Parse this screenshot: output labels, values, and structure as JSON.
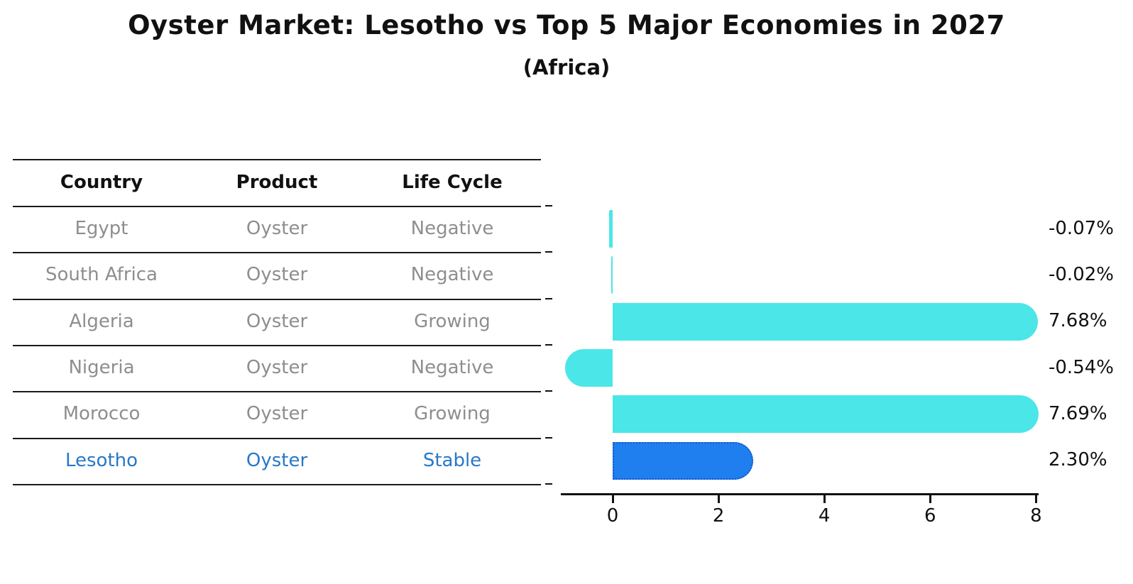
{
  "title": "Oyster Market: Lesotho vs Top 5 Major Economies in 2027",
  "subtitle": "(Africa)",
  "table": {
    "headers": [
      "Country",
      "Product",
      "Life Cycle"
    ],
    "rows": [
      {
        "country": "Egypt",
        "product": "Oyster",
        "life_cycle": "Negative",
        "highlight": false
      },
      {
        "country": "South Africa",
        "product": "Oyster",
        "life_cycle": "Negative",
        "highlight": false
      },
      {
        "country": "Algeria",
        "product": "Oyster",
        "life_cycle": "Growing",
        "highlight": false
      },
      {
        "country": "Nigeria",
        "product": "Oyster",
        "life_cycle": "Negative",
        "highlight": false
      },
      {
        "country": "Morocco",
        "product": "Oyster",
        "life_cycle": "Growing",
        "highlight": false
      },
      {
        "country": "Lesotho",
        "product": "Oyster",
        "life_cycle": "Stable",
        "highlight": true
      }
    ]
  },
  "chart_data": {
    "type": "bar",
    "orientation": "horizontal",
    "title": "Oyster Market: Lesotho vs Top 5 Major Economies in 2027 (Africa)",
    "categories": [
      "Egypt",
      "South Africa",
      "Algeria",
      "Nigeria",
      "Morocco",
      "Lesotho"
    ],
    "values": [
      -0.07,
      -0.02,
      7.68,
      -0.54,
      7.69,
      2.3
    ],
    "value_labels": [
      "-0.07%",
      "-0.02%",
      "7.68%",
      "-0.54%",
      "7.69%",
      "2.30%"
    ],
    "units": "percent",
    "x_ticks": [
      "0",
      "2",
      "4",
      "6",
      "8"
    ],
    "xlim": [
      -1.0,
      8.1
    ],
    "highlight_index": 5,
    "grid": false,
    "legend": "none"
  },
  "colors": {
    "bar_default": "#4BE6E8",
    "bar_highlight": "#1F7FEF",
    "bar_highlight_border": "#1857C8",
    "highlight_text": "#2878C8",
    "row_text": "#8E8E8E",
    "header_text": "#111111",
    "axis": "#111111",
    "value_text": "#111111",
    "background": "#FFFFFF"
  }
}
